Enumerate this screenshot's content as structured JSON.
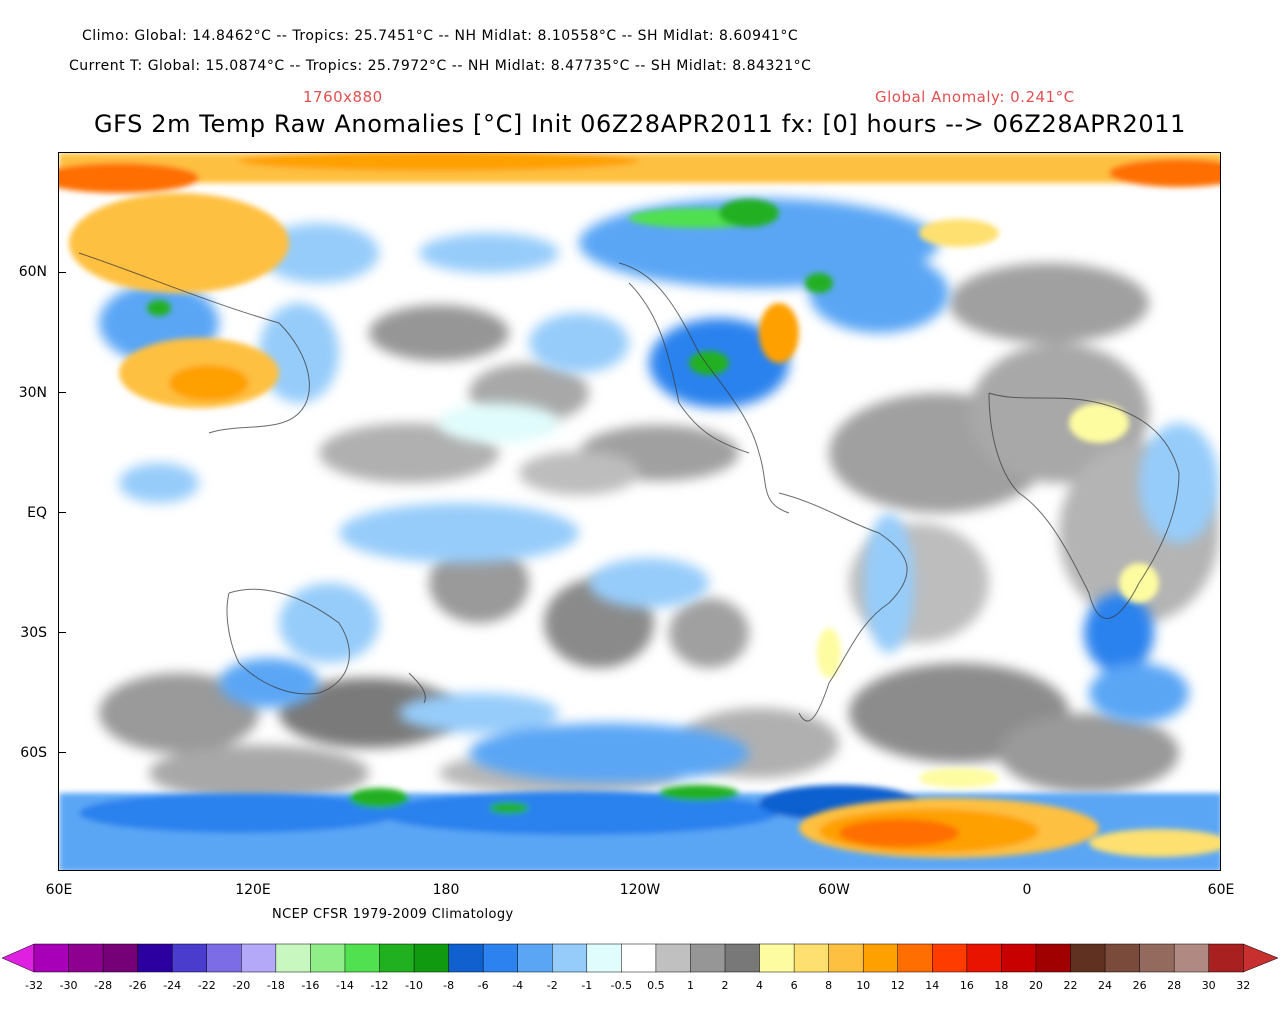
{
  "header": {
    "climo_line": "Climo:    Global: 14.8462°C -- Tropics: 25.7451°C -- NH Midlat: 8.10558°C -- SH Midlat: 8.60941°C",
    "current_line": "Current T:  Global: 15.0874°C -- Tropics: 25.7972°C -- NH Midlat: 8.47735°C -- SH Midlat: 8.84321°C",
    "resolution": "1760x880",
    "global_anomaly": "Global Anomaly: 0.241°C",
    "title": "GFS 2m Temp Raw Anomalies [°C] Init 06Z28APR2011 fx: [0] hours --> 06Z28APR2011"
  },
  "map": {
    "y_labels": [
      "60N",
      "30N",
      "EQ",
      "30S",
      "60S"
    ],
    "x_labels": [
      "60E",
      "120E",
      "180",
      "120W",
      "60W",
      "0",
      "60E"
    ],
    "credit": "NCEP CFSR 1979-2009 Climatology"
  },
  "colorbar": {
    "labels": [
      "-32",
      "-30",
      "-28",
      "-26",
      "-24",
      "-22",
      "-20",
      "-18",
      "-16",
      "-14",
      "-12",
      "-10",
      "-8",
      "-6",
      "-4",
      "-2",
      "-1",
      "-0.5",
      "0.5",
      "1",
      "2",
      "4",
      "6",
      "8",
      "10",
      "12",
      "14",
      "16",
      "18",
      "20",
      "22",
      "24",
      "26",
      "28",
      "30",
      "32"
    ],
    "colors": [
      "#a800b8",
      "#8e0090",
      "#760078",
      "#2c00a0",
      "#4a3ccc",
      "#7c6ce6",
      "#b4a8f8",
      "#c8f8c0",
      "#90ee88",
      "#50e050",
      "#20b020",
      "#109a10",
      "#1060d0",
      "#2c82ee",
      "#5aa6f5",
      "#96ccfa",
      "#e0fcfc",
      "#ffffff",
      "#c0c0c0",
      "#969696",
      "#787878",
      "#fefca0",
      "#fee070",
      "#fec040",
      "#fea000",
      "#fe6e00",
      "#fe3c00",
      "#e81400",
      "#c80000",
      "#a00000",
      "#603020",
      "#7a4a3a",
      "#946a5e",
      "#b08a82",
      "#a82020"
    ],
    "left_arrow_color": "#e020e0",
    "right_arrow_color": "#c83030"
  }
}
